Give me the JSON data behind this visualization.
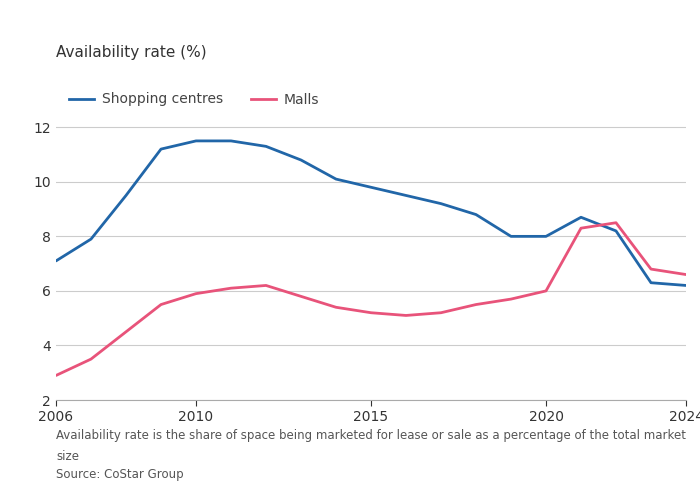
{
  "title": "Availability rate (%)",
  "legend": [
    "Shopping centres",
    "Malls"
  ],
  "line_colors": [
    "#2166a8",
    "#e8537a"
  ],
  "shopping_centres": {
    "x": [
      2006,
      2007,
      2008,
      2009,
      2010,
      2011,
      2012,
      2013,
      2014,
      2015,
      2016,
      2017,
      2018,
      2019,
      2020,
      2021,
      2022,
      2023,
      2024
    ],
    "y": [
      7.1,
      7.9,
      9.5,
      11.2,
      11.5,
      11.5,
      11.3,
      10.8,
      10.1,
      9.8,
      9.5,
      9.2,
      8.8,
      8.0,
      8.0,
      8.7,
      8.2,
      6.3,
      6.2
    ]
  },
  "malls": {
    "x": [
      2006,
      2007,
      2008,
      2009,
      2010,
      2011,
      2012,
      2013,
      2014,
      2015,
      2016,
      2017,
      2018,
      2019,
      2020,
      2021,
      2022,
      2023,
      2024
    ],
    "y": [
      2.9,
      3.5,
      4.5,
      5.5,
      5.9,
      6.1,
      6.2,
      5.8,
      5.4,
      5.2,
      5.1,
      5.2,
      5.5,
      5.7,
      6.0,
      8.3,
      8.5,
      6.8,
      6.6
    ]
  },
  "ylim": [
    2,
    13
  ],
  "yticks": [
    2,
    4,
    6,
    8,
    10,
    12
  ],
  "xlim": [
    2006,
    2024
  ],
  "xticks": [
    2006,
    2010,
    2015,
    2020,
    2024
  ],
  "footnote1": "Availability rate is the share of space being marketed for lease or sale as a percentage of the total market",
  "footnote2": "size",
  "source": "Source: CoStar Group",
  "background_color": "#ffffff",
  "line_width": 2.0,
  "title_fontsize": 11,
  "legend_fontsize": 10,
  "tick_fontsize": 10,
  "footnote_fontsize": 8.5
}
